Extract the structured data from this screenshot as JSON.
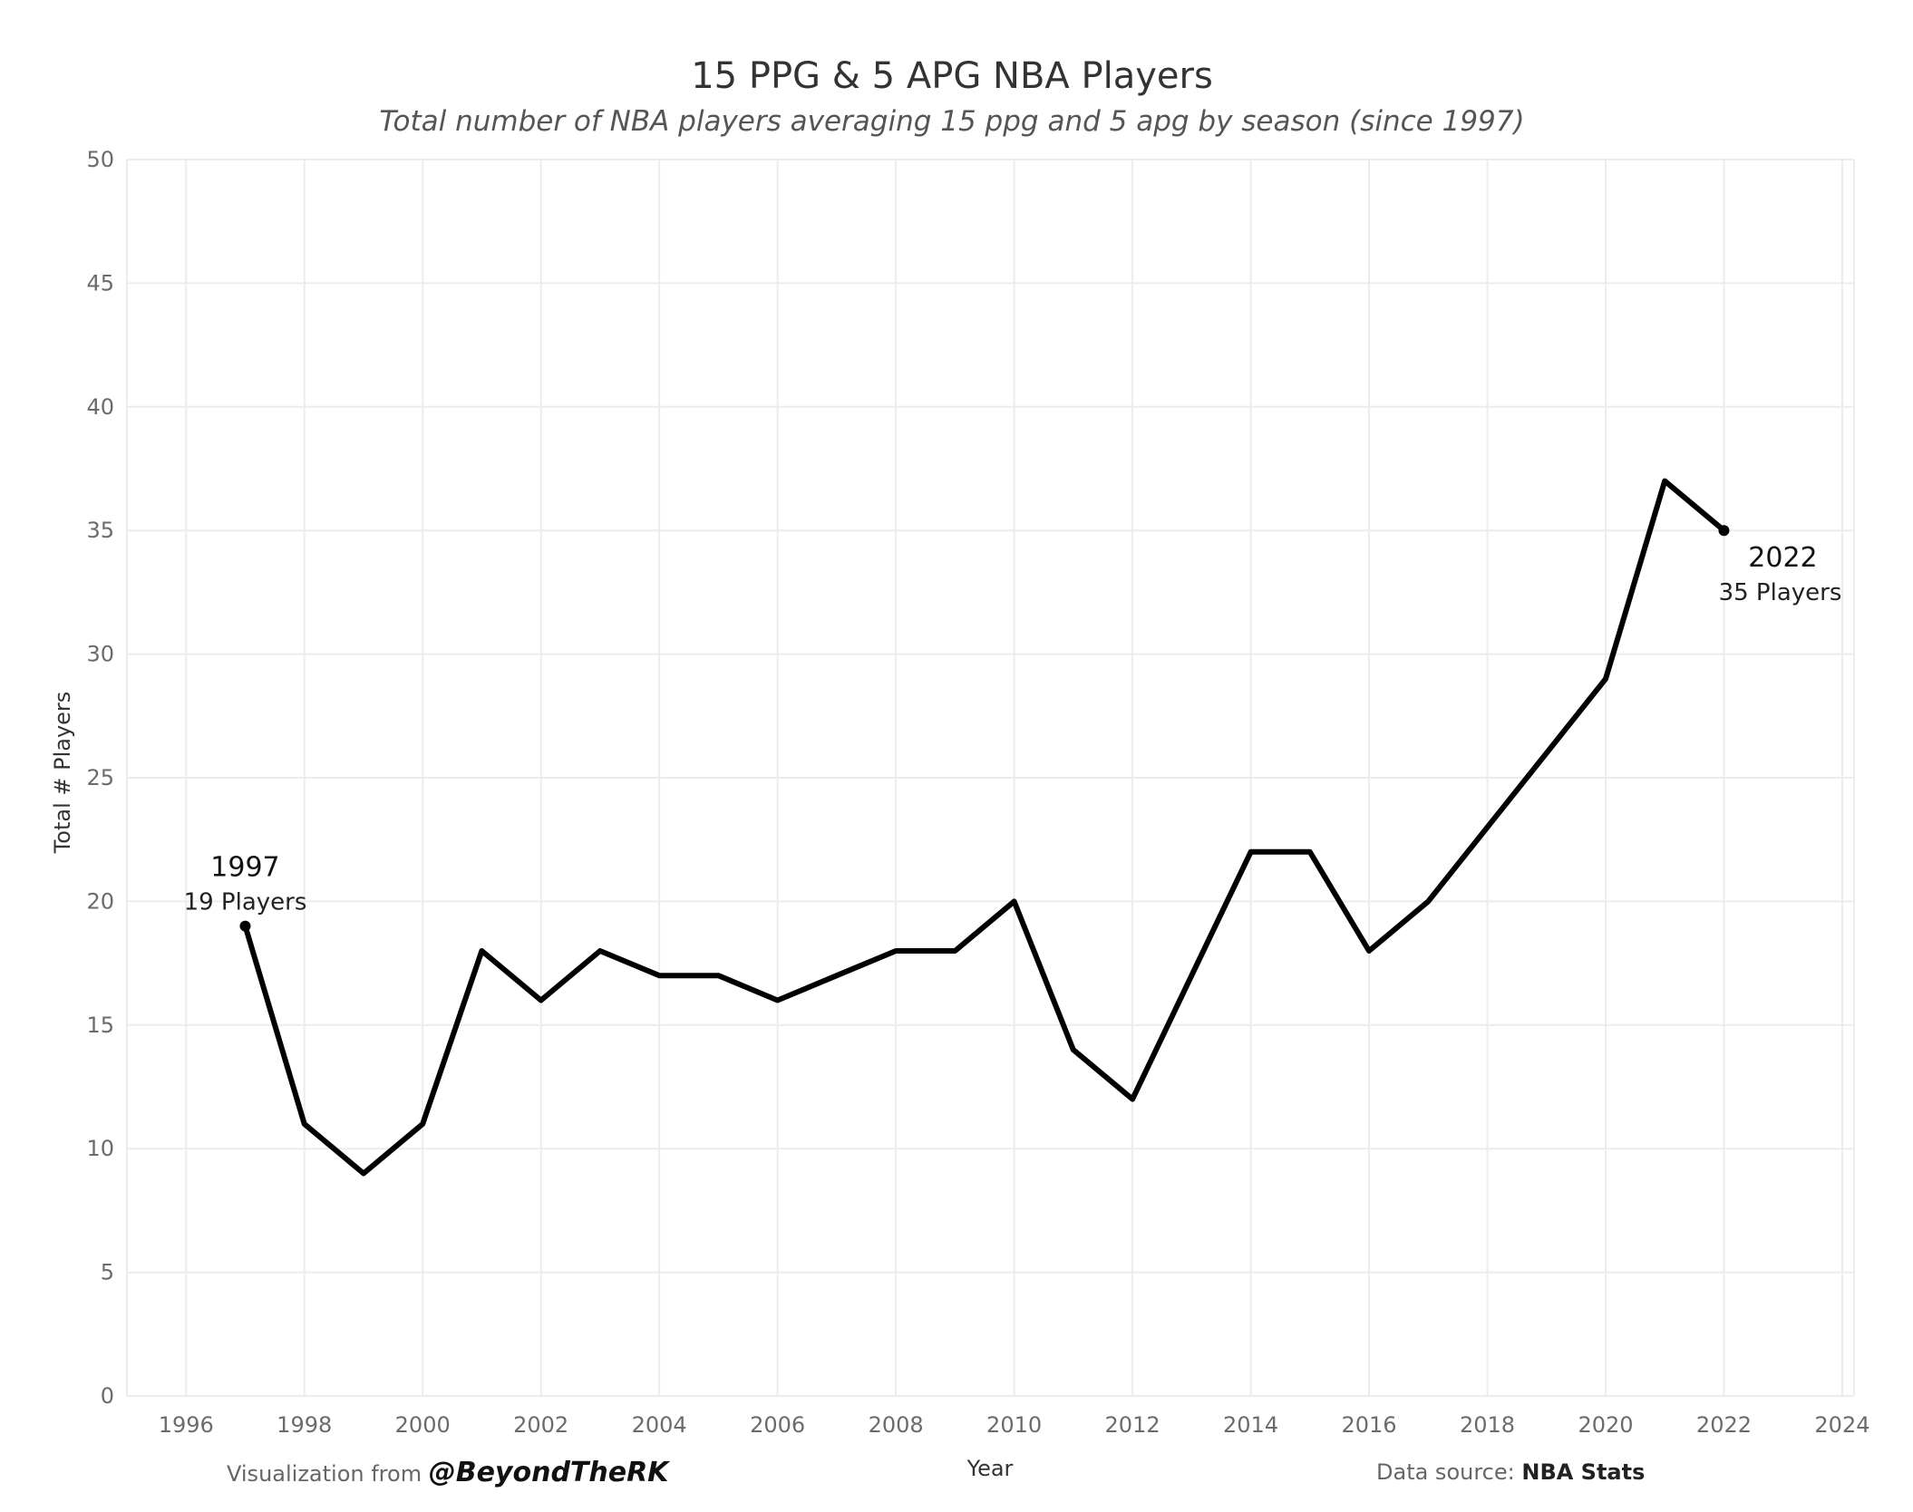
{
  "chart_data": {
    "type": "line",
    "title": "15 PPG & 5 APG NBA Players",
    "subtitle": "Total number of NBA players averaging 15 ppg and 5 apg by season (since 1997)",
    "xlabel": "Year",
    "ylabel": "Total # Players",
    "xlim": [
      1995,
      2024.2
    ],
    "ylim": [
      0,
      50
    ],
    "x_ticks": [
      1996,
      1998,
      2000,
      2002,
      2004,
      2006,
      2008,
      2010,
      2012,
      2014,
      2016,
      2018,
      2020,
      2022,
      2024
    ],
    "y_ticks": [
      0,
      5,
      10,
      15,
      20,
      25,
      30,
      35,
      40,
      45,
      50
    ],
    "grid": true,
    "legend": "none",
    "series": [
      {
        "x": [
          1997,
          1998,
          1999,
          2000,
          2001,
          2002,
          2003,
          2004,
          2005,
          2006,
          2007,
          2008,
          2009,
          2010,
          2011,
          2012,
          2013,
          2014,
          2015,
          2016,
          2017,
          2018,
          2019,
          2020,
          2021,
          2022
        ],
        "values": [
          19,
          11,
          9,
          11,
          18,
          16,
          18,
          17,
          17,
          16,
          17,
          18,
          18,
          20,
          14,
          12,
          17,
          22,
          22,
          18,
          20,
          23,
          26,
          29,
          37,
          35
        ],
        "color": "#000000"
      }
    ],
    "annotations": [
      {
        "x": 1997,
        "y": 19,
        "year": "1997",
        "value": "19 Players",
        "placement": "above"
      },
      {
        "x": 2022,
        "y": 35,
        "year": "2022",
        "value": "35 Players",
        "placement": "below-right"
      }
    ]
  },
  "footer": {
    "credit_prefix": "Visualization from ",
    "credit_handle": "@BeyondTheRK",
    "source_prefix": "Data source: ",
    "source_name": "NBA Stats"
  }
}
